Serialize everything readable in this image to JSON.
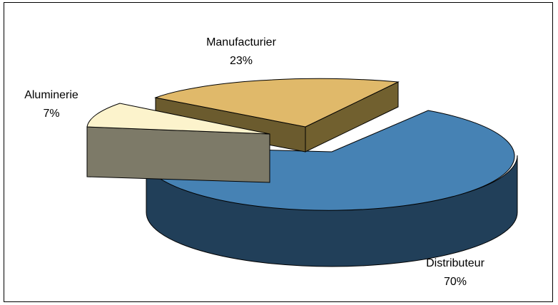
{
  "chart_data": {
    "type": "pie",
    "title": "",
    "categories": [
      "Distributeur",
      "Manufacturier",
      "Aluminerie"
    ],
    "values": [
      70,
      23,
      7
    ],
    "value_labels": [
      "70%",
      "23%",
      "7%"
    ],
    "colors": [
      "#4682b4",
      "#e0b96a",
      "#fcf3cc"
    ],
    "exploded": true,
    "three_d": true,
    "legend": "none"
  }
}
